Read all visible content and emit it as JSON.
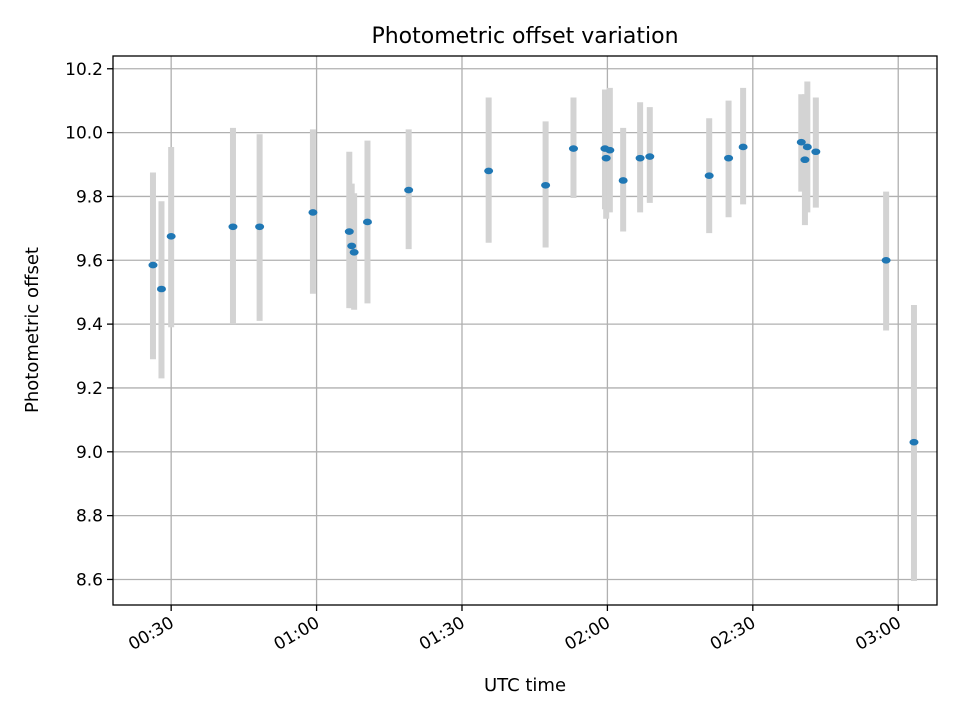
{
  "chart_data": {
    "type": "scatter",
    "title": "Photometric offset variation",
    "xlabel": "UTC time",
    "ylabel": "Photometric offset",
    "x_unit": "UTC time (hh:mm)",
    "xlim": [
      "00:18",
      "03:08"
    ],
    "ylim": [
      8.52,
      10.24
    ],
    "xticks": [
      "00:30",
      "01:00",
      "01:30",
      "02:00",
      "02:30",
      "03:00"
    ],
    "yticks": [
      "8.6",
      "8.8",
      "9.0",
      "9.2",
      "9.4",
      "9.6",
      "9.8",
      "10.0",
      "10.2"
    ],
    "grid": true,
    "legend": "none",
    "marker_color": "#1f77b4",
    "errorbar_color": "#d3d3d3",
    "points": [
      {
        "x": "00:26:15",
        "y": 9.585,
        "ylow": 9.29,
        "yhigh": 9.875
      },
      {
        "x": "00:28:00",
        "y": 9.51,
        "ylow": 9.23,
        "yhigh": 9.785
      },
      {
        "x": "00:30:00",
        "y": 9.675,
        "ylow": 9.39,
        "yhigh": 9.955
      },
      {
        "x": "00:42:45",
        "y": 9.705,
        "ylow": 9.4,
        "yhigh": 10.015
      },
      {
        "x": "00:48:15",
        "y": 9.705,
        "ylow": 9.41,
        "yhigh": 9.995
      },
      {
        "x": "00:59:15",
        "y": 9.75,
        "ylow": 9.495,
        "yhigh": 10.01
      },
      {
        "x": "01:06:45",
        "y": 9.69,
        "ylow": 9.45,
        "yhigh": 9.94
      },
      {
        "x": "01:07:15",
        "y": 9.645,
        "ylow": 9.45,
        "yhigh": 9.84
      },
      {
        "x": "01:07:45",
        "y": 9.625,
        "ylow": 9.445,
        "yhigh": 9.81
      },
      {
        "x": "01:10:30",
        "y": 9.72,
        "ylow": 9.465,
        "yhigh": 9.975
      },
      {
        "x": "01:19:00",
        "y": 9.82,
        "ylow": 9.635,
        "yhigh": 10.01
      },
      {
        "x": "01:35:30",
        "y": 9.88,
        "ylow": 9.655,
        "yhigh": 10.11
      },
      {
        "x": "01:47:15",
        "y": 9.835,
        "ylow": 9.64,
        "yhigh": 10.035
      },
      {
        "x": "01:53:00",
        "y": 9.95,
        "ylow": 9.795,
        "yhigh": 10.11
      },
      {
        "x": "01:59:30",
        "y": 9.95,
        "ylow": 9.76,
        "yhigh": 10.135
      },
      {
        "x": "01:59:45",
        "y": 9.92,
        "ylow": 9.73,
        "yhigh": 10.135
      },
      {
        "x": "02:00:30",
        "y": 9.945,
        "ylow": 9.75,
        "yhigh": 10.14
      },
      {
        "x": "02:03:15",
        "y": 9.85,
        "ylow": 9.69,
        "yhigh": 10.015
      },
      {
        "x": "02:06:45",
        "y": 9.92,
        "ylow": 9.75,
        "yhigh": 10.095
      },
      {
        "x": "02:08:45",
        "y": 9.925,
        "ylow": 9.78,
        "yhigh": 10.08
      },
      {
        "x": "02:21:00",
        "y": 9.865,
        "ylow": 9.685,
        "yhigh": 10.045
      },
      {
        "x": "02:25:00",
        "y": 9.92,
        "ylow": 9.735,
        "yhigh": 10.1
      },
      {
        "x": "02:28:00",
        "y": 9.955,
        "ylow": 9.775,
        "yhigh": 10.14
      },
      {
        "x": "02:40:00",
        "y": 9.97,
        "ylow": 9.815,
        "yhigh": 10.12
      },
      {
        "x": "02:40:45",
        "y": 9.915,
        "ylow": 9.71,
        "yhigh": 10.12
      },
      {
        "x": "02:41:15",
        "y": 9.955,
        "ylow": 9.75,
        "yhigh": 10.16
      },
      {
        "x": "02:43:00",
        "y": 9.94,
        "ylow": 9.765,
        "yhigh": 10.11
      },
      {
        "x": "02:57:30",
        "y": 9.6,
        "ylow": 9.38,
        "yhigh": 9.815
      },
      {
        "x": "03:03:15",
        "y": 9.03,
        "ylow": 8.595,
        "yhigh": 9.46
      }
    ]
  }
}
